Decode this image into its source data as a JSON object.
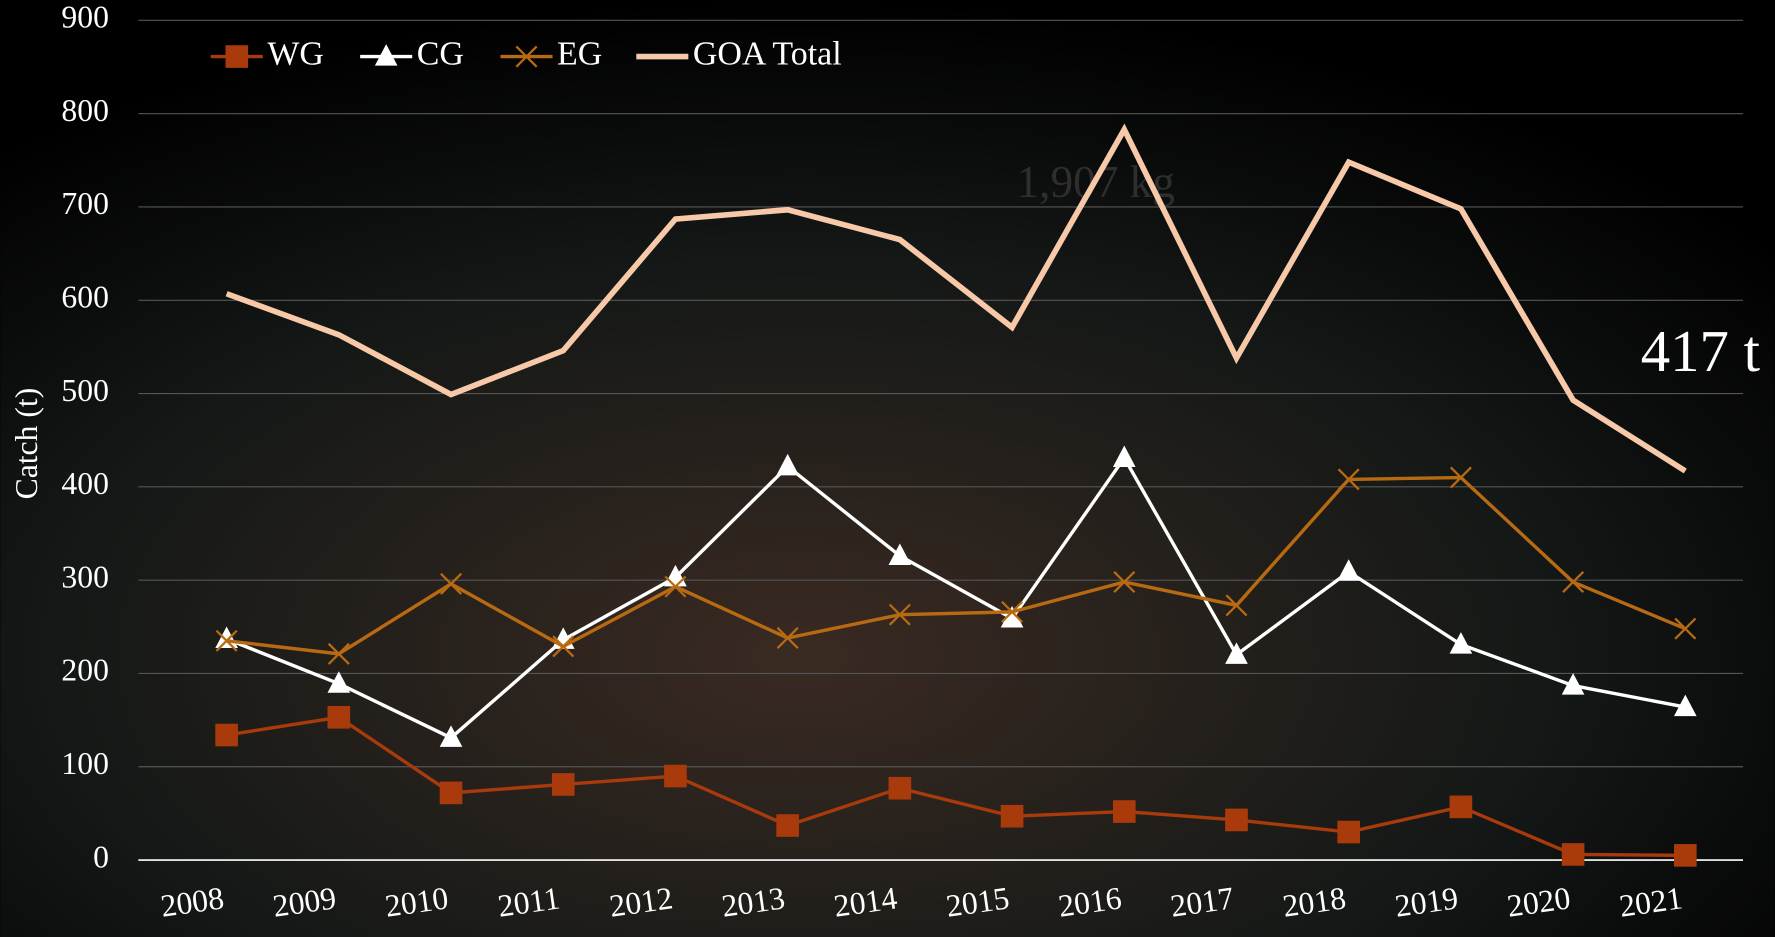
{
  "chart_data": {
    "type": "line",
    "y_label": "Catch (t)",
    "annotations": [
      "417 t",
      "1,907 kg"
    ],
    "categories": [
      "2008",
      "2009",
      "2010",
      "2011",
      "2012",
      "2013",
      "2014",
      "2015",
      "2016",
      "2017",
      "2018",
      "2019",
      "2020",
      "2021"
    ],
    "series": [
      {
        "name": "WG",
        "color": "#a83a0c",
        "marker": "square",
        "values": [
          134,
          153,
          72,
          81,
          90,
          37,
          77,
          47,
          52,
          43,
          30,
          57,
          6,
          5
        ]
      },
      {
        "name": "CG",
        "color": "#ffffff",
        "marker": "triangle",
        "values": [
          237,
          189,
          131,
          236,
          303,
          422,
          326,
          259,
          431,
          220,
          309,
          231,
          187,
          164
        ]
      },
      {
        "name": "EG",
        "color": "#b86a12",
        "marker": "x",
        "values": [
          235,
          221,
          296,
          229,
          293,
          238,
          263,
          266,
          298,
          273,
          408,
          410,
          298,
          248
        ]
      },
      {
        "name": "GOA Total",
        "color": "#f8c9a8",
        "marker": "none",
        "values": [
          607,
          563,
          499,
          546,
          687,
          697,
          665,
          571,
          783,
          538,
          748,
          698,
          493,
          417
        ]
      }
    ],
    "ylim": [
      0,
      900
    ],
    "yticks": [
      0,
      100,
      200,
      300,
      400,
      500,
      600,
      700,
      800,
      900
    ],
    "grid": true
  }
}
